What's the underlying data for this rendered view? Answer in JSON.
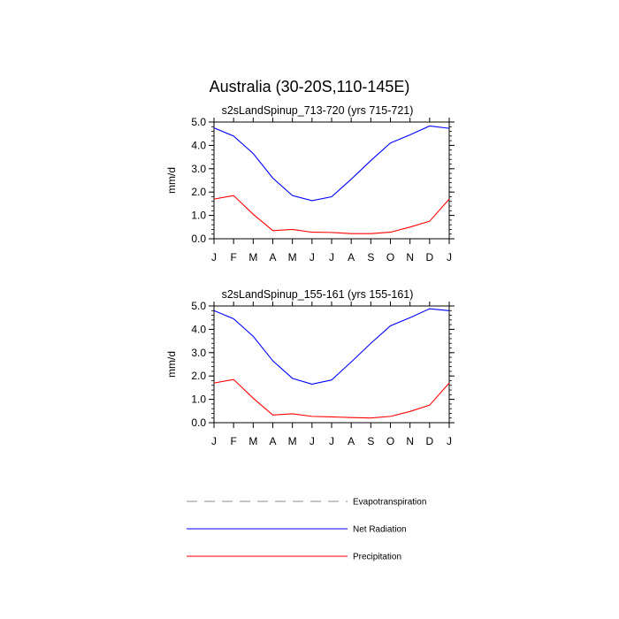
{
  "figure_title": "Australia (30-20S,110-145E)",
  "colors": {
    "net_radiation": "#0000ff",
    "precipitation": "#ff0000",
    "evapotranspiration": "#888888"
  },
  "legend": [
    {
      "label": "Evapotranspiration",
      "style": "dashed",
      "color": "#888888"
    },
    {
      "label": "Net Radiation",
      "style": "solid",
      "color": "#0000ff"
    },
    {
      "label": "Precipitation",
      "style": "solid",
      "color": "#ff0000"
    }
  ],
  "chart_data": [
    {
      "type": "line",
      "title": "s2sLandSpinup_713-720 (yrs 715-721)",
      "ylabel": "mm/d",
      "xlabel": "",
      "categories": [
        "J",
        "F",
        "M",
        "A",
        "M",
        "J",
        "J",
        "A",
        "S",
        "O",
        "N",
        "D",
        "J"
      ],
      "ylim": [
        0,
        5
      ],
      "yticks": [
        "0.0",
        "1.0",
        "2.0",
        "3.0",
        "4.0",
        "5.0"
      ],
      "grid": false,
      "series": [
        {
          "name": "Net Radiation",
          "color": "#0000ff",
          "values": [
            4.75,
            4.4,
            3.65,
            2.6,
            1.85,
            1.63,
            1.8,
            2.55,
            3.35,
            4.1,
            4.45,
            4.83,
            4.73
          ]
        },
        {
          "name": "Precipitation",
          "color": "#ff0000",
          "values": [
            1.7,
            1.85,
            1.05,
            0.35,
            0.4,
            0.28,
            0.27,
            0.22,
            0.22,
            0.28,
            0.5,
            0.75,
            1.7
          ]
        }
      ]
    },
    {
      "type": "line",
      "title": "s2sLandSpinup_155-161 (yrs 155-161)",
      "ylabel": "mm/d",
      "xlabel": "",
      "categories": [
        "J",
        "F",
        "M",
        "A",
        "M",
        "J",
        "J",
        "A",
        "S",
        "O",
        "N",
        "D",
        "J"
      ],
      "ylim": [
        0,
        5
      ],
      "yticks": [
        "0.0",
        "1.0",
        "2.0",
        "3.0",
        "4.0",
        "5.0"
      ],
      "grid": false,
      "series": [
        {
          "name": "Net Radiation",
          "color": "#0000ff",
          "values": [
            4.8,
            4.45,
            3.7,
            2.65,
            1.9,
            1.65,
            1.83,
            2.6,
            3.4,
            4.15,
            4.5,
            4.88,
            4.8
          ]
        },
        {
          "name": "Precipitation",
          "color": "#ff0000",
          "values": [
            1.7,
            1.85,
            1.05,
            0.33,
            0.38,
            0.27,
            0.25,
            0.22,
            0.2,
            0.27,
            0.48,
            0.75,
            1.7
          ]
        }
      ]
    }
  ]
}
